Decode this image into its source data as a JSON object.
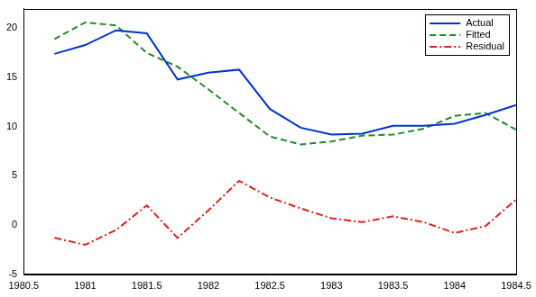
{
  "chart_data": {
    "type": "line",
    "x": [
      1980.75,
      1981,
      1981.25,
      1981.5,
      1981.75,
      1982,
      1982.25,
      1982.5,
      1982.75,
      1983,
      1983.25,
      1983.5,
      1983.75,
      1984,
      1984.25,
      1984.5
    ],
    "series": [
      {
        "name": "Actual",
        "color": "#0033cc",
        "line_style": "solid",
        "values": [
          17.4,
          18.3,
          19.8,
          19.5,
          14.8,
          15.5,
          15.8,
          11.8,
          9.9,
          9.2,
          9.3,
          10.1,
          10.1,
          10.3,
          11.2,
          12.2
        ]
      },
      {
        "name": "Fitted",
        "color": "#228b22",
        "line_style": "dashed",
        "values": [
          18.9,
          20.6,
          20.3,
          17.5,
          16.1,
          13.8,
          11.4,
          9.0,
          8.2,
          8.5,
          9.1,
          9.2,
          9.8,
          11.1,
          11.4,
          9.7
        ]
      },
      {
        "name": "Residual",
        "color": "#dd2222",
        "line_style": "dashdot",
        "values": [
          -1.3,
          -2.0,
          -0.5,
          2.0,
          -1.3,
          1.5,
          4.5,
          2.8,
          1.7,
          0.7,
          0.3,
          0.9,
          0.3,
          -0.8,
          -0.1,
          2.6
        ]
      }
    ],
    "xlim": [
      1980.5,
      1984.5
    ],
    "xticks": [
      1980.5,
      1981,
      1981.5,
      1982,
      1982.5,
      1983,
      1983.5,
      1984,
      1984.5
    ],
    "ylim": [
      -5,
      22
    ],
    "yticks": [
      -5,
      0,
      5,
      10,
      15,
      20
    ],
    "grid": false,
    "legend": "upper right"
  }
}
